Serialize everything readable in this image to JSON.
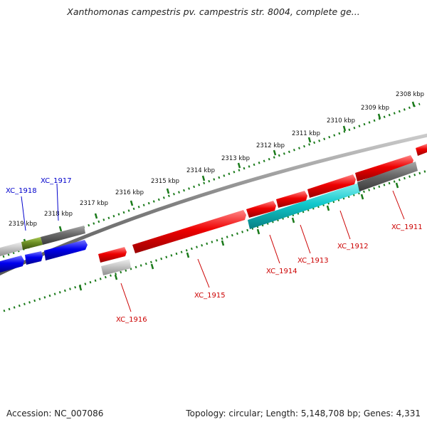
{
  "title": "Xanthomonas campestris pv. campestris str. 8004, complete ge...",
  "footer": {
    "accession": "Accession: NC_007086",
    "summary": "Topology: circular; Length: 5,148,708 bp; Genes: 4,331"
  },
  "colors": {
    "background": "#ffffff",
    "backbone": "#888888",
    "tick": "#1a7a1a",
    "forward_gene": "#ee0000",
    "forward_label": "#cc0000",
    "reverse_gene": "#0000ee",
    "reverse_label": "#0000cc",
    "grey_feature": "#777777",
    "cyan_feature": "#11c8cc",
    "olive_feature": "#6b8e23"
  },
  "scale_labels": [
    "2308 kbp",
    "2309 kbp",
    "2310 kbp",
    "2311 kbp",
    "2312 kbp",
    "2313 kbp",
    "2314 kbp",
    "2315 kbp",
    "2316 kbp",
    "2317 kbp",
    "2318 kbp",
    "2319 kbp"
  ],
  "gene_labels": {
    "XC_1918": "XC_1918",
    "XC_1917": "XC_1917",
    "XC_1916": "XC_1916",
    "XC_1915": "XC_1915",
    "XC_1914": "XC_1914",
    "XC_1913": "XC_1913",
    "XC_1912": "XC_1912",
    "XC_1911": "XC_1911"
  }
}
